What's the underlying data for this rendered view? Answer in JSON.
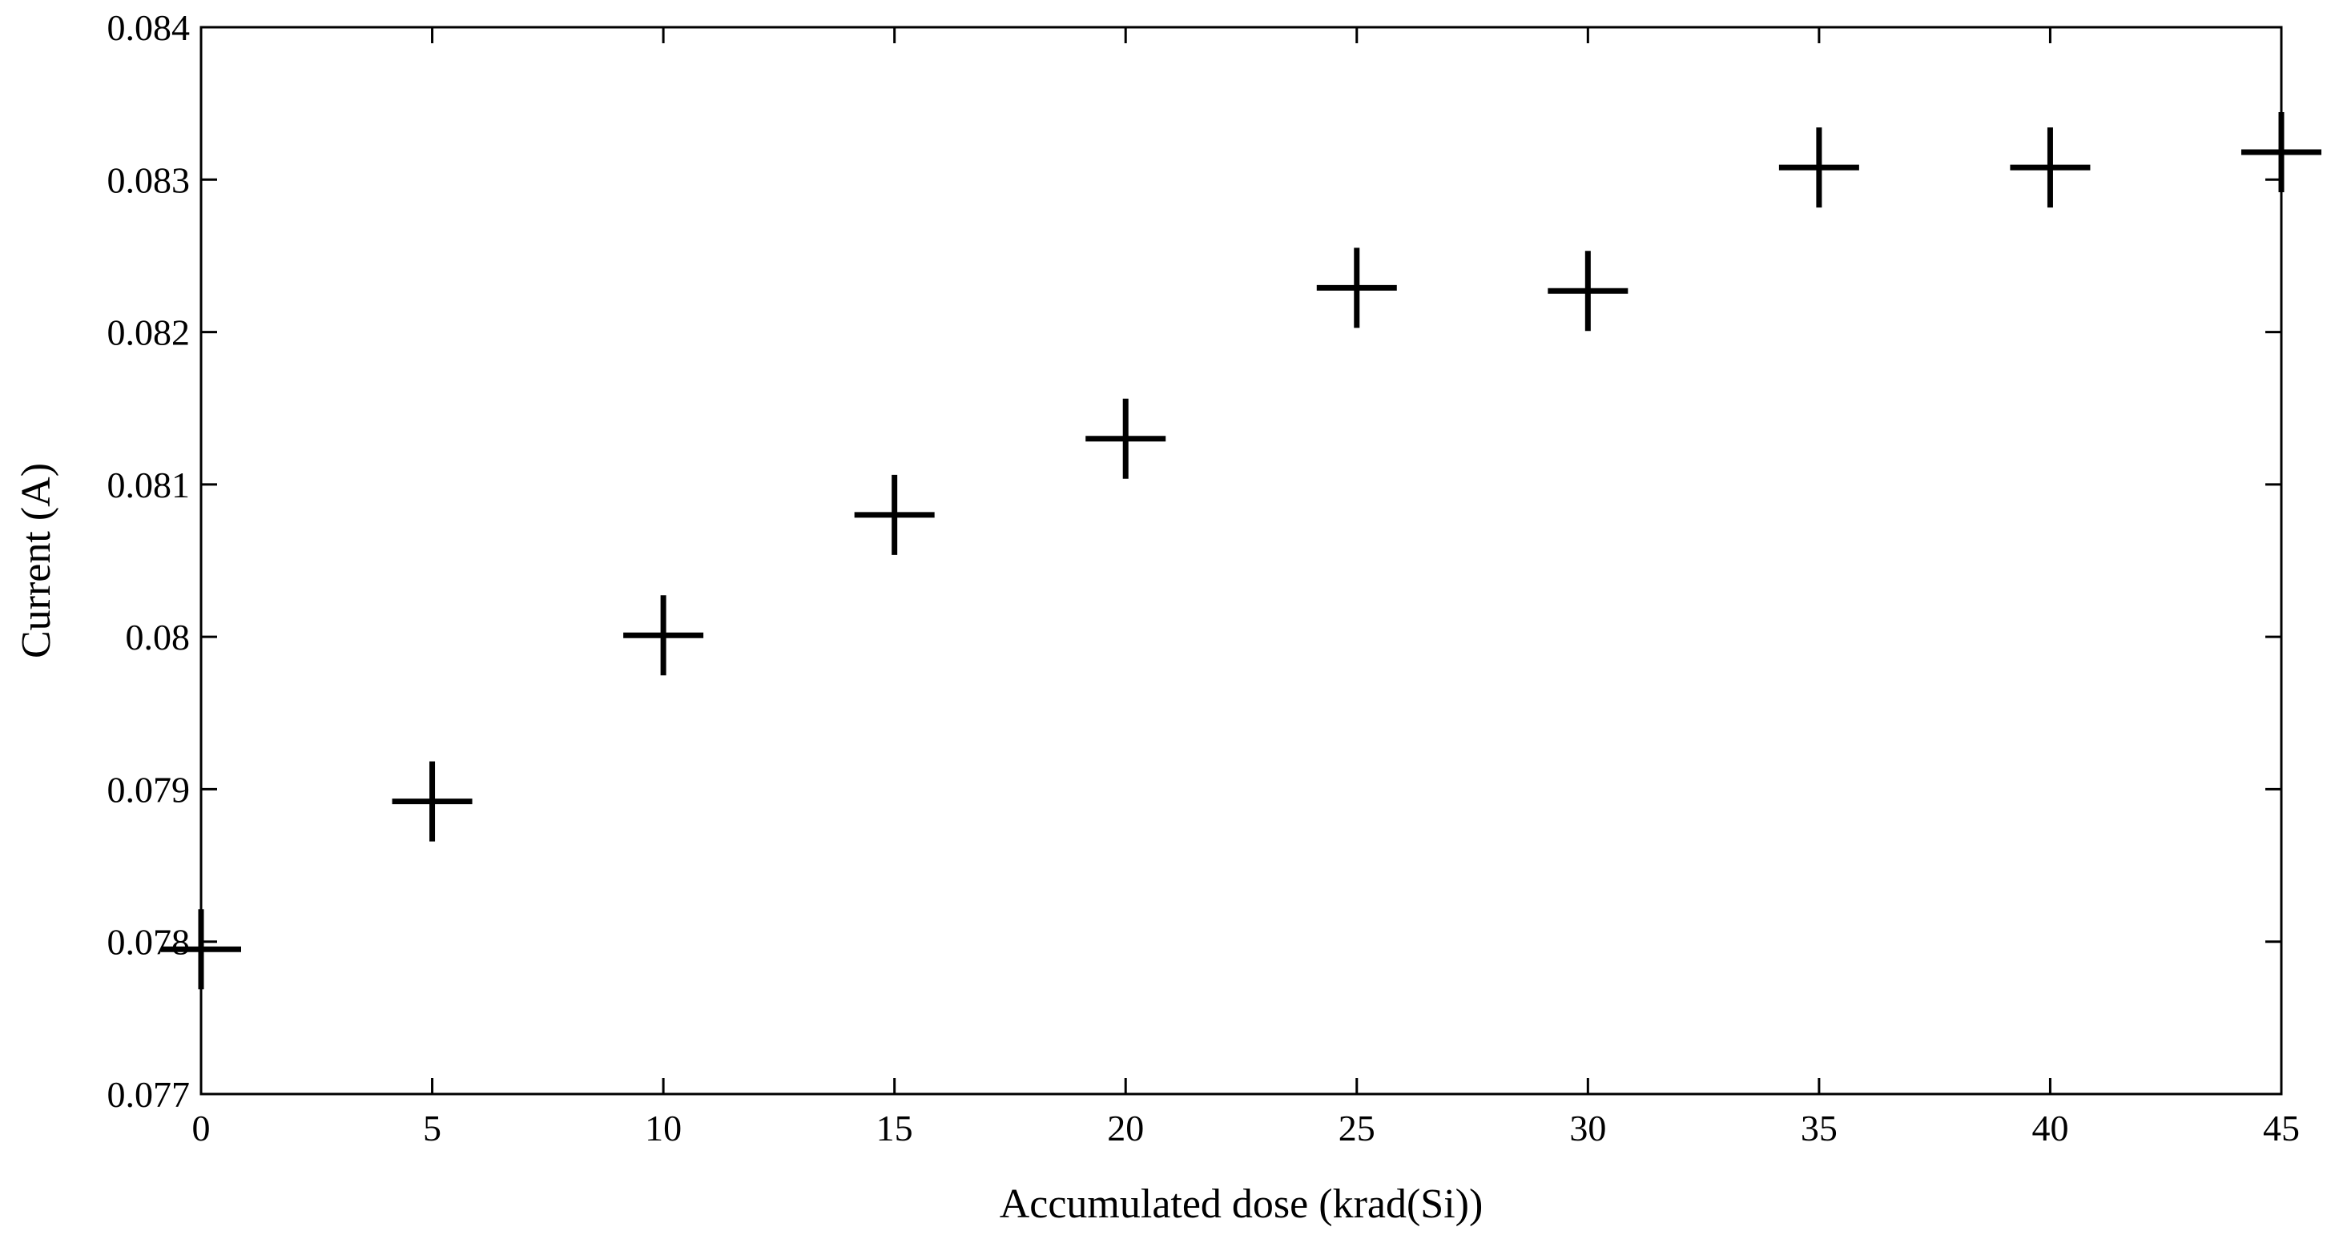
{
  "chart_data": {
    "type": "scatter",
    "title": "",
    "xlabel": "Accumulated dose (krad(Si))",
    "ylabel": "Current (A)",
    "xlim": [
      0,
      45
    ],
    "ylim": [
      0.077,
      0.084
    ],
    "x_ticks": [
      0,
      5,
      10,
      15,
      20,
      25,
      30,
      35,
      40,
      45
    ],
    "x_tick_labels": [
      "0",
      "5",
      "10",
      "15",
      "20",
      "25",
      "30",
      "35",
      "40",
      "45"
    ],
    "y_ticks": [
      0.077,
      0.078,
      0.079,
      0.08,
      0.081,
      0.082,
      0.083,
      0.084
    ],
    "y_tick_labels": [
      "0.077",
      "0.078",
      "0.079",
      "0.08",
      "0.081",
      "0.082",
      "0.083",
      "0.084"
    ],
    "grid": false,
    "legend": "none",
    "marker": "plus",
    "color": "#000000",
    "series": [
      {
        "x": [
          0,
          5,
          10,
          15,
          20,
          25,
          30,
          35,
          40,
          45
        ],
        "y": [
          0.07795,
          0.07892,
          0.08001,
          0.0808,
          0.0813,
          0.08229,
          0.08227,
          0.08308,
          0.08308,
          0.08318
        ]
      }
    ]
  }
}
